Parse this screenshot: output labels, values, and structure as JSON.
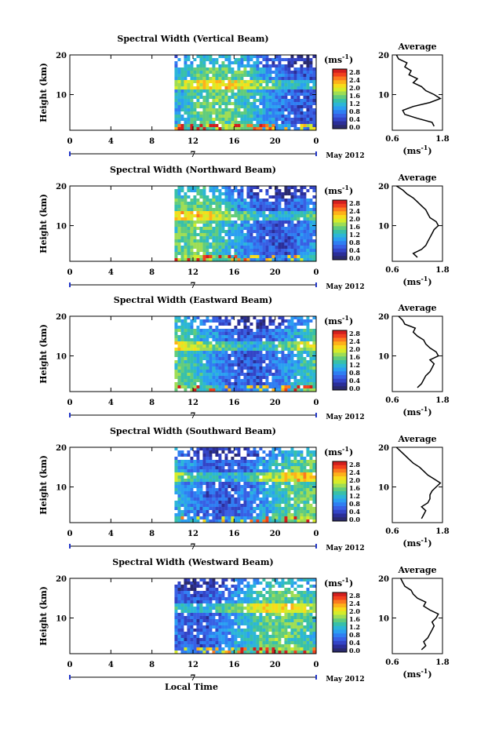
{
  "figure": {
    "xlabel_bottom": "Local Time",
    "ylabel": "Height (km)",
    "date_label": "May 2012",
    "day_marker": "7",
    "unit_label": "(ms",
    "unit_superscript": "-1",
    "unit_close": ")",
    "avg_title": "Average",
    "avg_xlabel": "(ms",
    "avg_xlabel_sup": "-1",
    "avg_xlabel_close": ")"
  },
  "chart_data": [
    {
      "type": "heatmap",
      "title": "Spectral Width (Vertical Beam)",
      "xlim": [
        0,
        24
      ],
      "ylim": [
        1,
        20
      ],
      "xticks": [
        "0",
        "4",
        "8",
        "12",
        "16",
        "20",
        "0"
      ],
      "yticks": [
        "20",
        "10"
      ],
      "data_start_hour": 10.2,
      "colorbar_ticks": [
        "2.8",
        "2.4",
        "2.0",
        "1.6",
        "1.2",
        "0.8",
        "0.4",
        "0.0"
      ],
      "average_profile": {
        "xlim": [
          0.6,
          1.8
        ],
        "xticks": [
          "0.6",
          "1.8"
        ],
        "yticks": [
          "20",
          "10"
        ],
        "height": [
          2,
          3,
          4,
          5,
          6,
          7,
          8,
          9,
          10,
          11,
          12,
          13,
          14,
          15,
          16,
          17,
          18,
          19,
          20
        ],
        "value": [
          1.6,
          1.55,
          1.2,
          0.9,
          0.85,
          1.1,
          1.5,
          1.75,
          1.6,
          1.4,
          1.3,
          1.1,
          1.2,
          1.0,
          1.05,
          0.9,
          0.95,
          0.75,
          0.7
        ]
      }
    },
    {
      "type": "heatmap",
      "title": "Spectral Width (Northward Beam)",
      "xlim": [
        0,
        24
      ],
      "ylim": [
        1,
        20
      ],
      "xticks": [
        "0",
        "4",
        "8",
        "12",
        "16",
        "20",
        "0"
      ],
      "yticks": [
        "20",
        "10"
      ],
      "data_start_hour": 10.2,
      "colorbar_ticks": [
        "2.8",
        "2.4",
        "2.0",
        "1.6",
        "1.2",
        "0.8",
        "0.4",
        "0.0"
      ],
      "average_profile": {
        "xlim": [
          0.6,
          1.8
        ],
        "xticks": [
          "0.6",
          "1.8"
        ],
        "yticks": [
          "20",
          "10"
        ],
        "height": [
          2,
          3,
          4,
          5,
          6,
          7,
          8,
          9,
          10,
          11,
          12,
          13,
          14,
          15,
          16,
          17,
          18,
          19,
          20
        ],
        "value": [
          1.2,
          1.1,
          1.3,
          1.4,
          1.45,
          1.5,
          1.55,
          1.6,
          1.7,
          1.65,
          1.5,
          1.45,
          1.4,
          1.3,
          1.2,
          1.1,
          0.95,
          0.85,
          0.7
        ]
      }
    },
    {
      "type": "heatmap",
      "title": "Spectral Width (Eastward Beam)",
      "xlim": [
        0,
        24
      ],
      "ylim": [
        1,
        20
      ],
      "xticks": [
        "0",
        "4",
        "8",
        "12",
        "16",
        "20",
        "0"
      ],
      "yticks": [
        "20",
        "10"
      ],
      "data_start_hour": 10.2,
      "colorbar_ticks": [
        "2.8",
        "2.4",
        "2.0",
        "1.6",
        "1.2",
        "0.8",
        "0.4",
        "0.0"
      ],
      "average_profile": {
        "xlim": [
          0.6,
          1.8
        ],
        "xticks": [
          "0.6",
          "1.8"
        ],
        "yticks": [
          "20",
          "10"
        ],
        "height": [
          2,
          3,
          4,
          5,
          6,
          7,
          8,
          9,
          10,
          11,
          12,
          13,
          14,
          15,
          16,
          17,
          18,
          19,
          20
        ],
        "value": [
          1.2,
          1.3,
          1.35,
          1.4,
          1.5,
          1.55,
          1.6,
          1.5,
          1.7,
          1.65,
          1.5,
          1.4,
          1.35,
          1.2,
          1.1,
          1.15,
          0.9,
          0.85,
          0.75
        ]
      }
    },
    {
      "type": "heatmap",
      "title": "Spectral Width (Southward Beam)",
      "xlim": [
        0,
        24
      ],
      "ylim": [
        1,
        20
      ],
      "xticks": [
        "0",
        "4",
        "8",
        "12",
        "16",
        "20",
        "0"
      ],
      "yticks": [
        "20",
        "10"
      ],
      "data_start_hour": 10.2,
      "colorbar_ticks": [
        "2.8",
        "2.4",
        "2.0",
        "1.6",
        "1.2",
        "0.8",
        "0.4",
        "0.0"
      ],
      "average_profile": {
        "xlim": [
          0.6,
          1.8
        ],
        "xticks": [
          "0.6",
          "1.8"
        ],
        "yticks": [
          "20",
          "10"
        ],
        "height": [
          2,
          3,
          4,
          5,
          6,
          7,
          8,
          9,
          10,
          11,
          12,
          13,
          14,
          15,
          16,
          17,
          18,
          19,
          20
        ],
        "value": [
          1.3,
          1.35,
          1.4,
          1.3,
          1.45,
          1.5,
          1.5,
          1.55,
          1.65,
          1.75,
          1.6,
          1.45,
          1.35,
          1.25,
          1.1,
          1.0,
          0.9,
          0.8,
          0.7
        ]
      }
    },
    {
      "type": "heatmap",
      "title": "Spectral Width (Westward Beam)",
      "xlim": [
        0,
        24
      ],
      "ylim": [
        1,
        20
      ],
      "xticks": [
        "0",
        "4",
        "8",
        "12",
        "16",
        "20",
        "0"
      ],
      "yticks": [
        "20",
        "10"
      ],
      "data_start_hour": 10.2,
      "colorbar_ticks": [
        "2.8",
        "2.4",
        "2.0",
        "1.6",
        "1.2",
        "0.8",
        "0.4",
        "0.0"
      ],
      "average_profile": {
        "xlim": [
          0.6,
          1.8
        ],
        "xticks": [
          "0.6",
          "1.8"
        ],
        "yticks": [
          "20",
          "10"
        ],
        "height": [
          2,
          3,
          4,
          5,
          6,
          7,
          8,
          9,
          10,
          11,
          12,
          13,
          14,
          15,
          16,
          17,
          18,
          19,
          20
        ],
        "value": [
          1.3,
          1.4,
          1.35,
          1.45,
          1.5,
          1.55,
          1.6,
          1.55,
          1.65,
          1.7,
          1.5,
          1.35,
          1.4,
          1.2,
          1.1,
          1.05,
          0.9,
          0.85,
          0.8
        ]
      }
    }
  ]
}
